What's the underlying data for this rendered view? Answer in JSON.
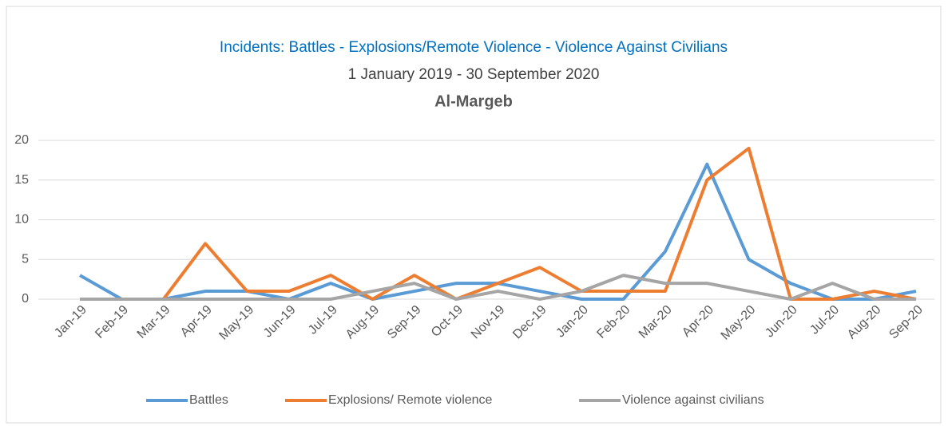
{
  "chart_data": {
    "type": "line",
    "title": "Incidents: Battles - Explosions/Remote Violence - Violence Against Civilians",
    "subtitle": "1 January 2019 -  30 September 2020",
    "heading": "Al-Margeb",
    "categories": [
      "Jan-19",
      "Feb-19",
      "Mar-19",
      "Apr-19",
      "May-19",
      "Jun-19",
      "Jul-19",
      "Aug-19",
      "Sep-19",
      "Oct-19",
      "Nov-19",
      "Dec-19",
      "Jan-20",
      "Feb-20",
      "Mar-20",
      "Apr-20",
      "May-20",
      "Jun-20",
      "Jul-20",
      "Aug-20",
      "Sep-20"
    ],
    "series": [
      {
        "name": "Battles",
        "color": "#5b9bd5",
        "values": [
          3,
          0,
          0,
          1,
          1,
          0,
          2,
          0,
          1,
          2,
          2,
          1,
          0,
          0,
          6,
          17,
          5,
          2,
          0,
          0,
          1
        ]
      },
      {
        "name": "Explosions/ Remote violence",
        "color": "#ed7d31",
        "values": [
          0,
          0,
          0,
          7,
          1,
          1,
          3,
          0,
          3,
          0,
          2,
          4,
          1,
          1,
          1,
          15,
          19,
          0,
          0,
          1,
          0
        ]
      },
      {
        "name": "Violence against civilians",
        "color": "#a5a5a5",
        "values": [
          0,
          0,
          0,
          0,
          0,
          0,
          0,
          1,
          2,
          0,
          1,
          0,
          1,
          3,
          2,
          2,
          1,
          0,
          2,
          0,
          0
        ]
      }
    ],
    "ylim": [
      0,
      20
    ],
    "yticks": [
      0,
      5,
      10,
      15,
      20
    ],
    "grid": true,
    "legend": "bottom"
  }
}
